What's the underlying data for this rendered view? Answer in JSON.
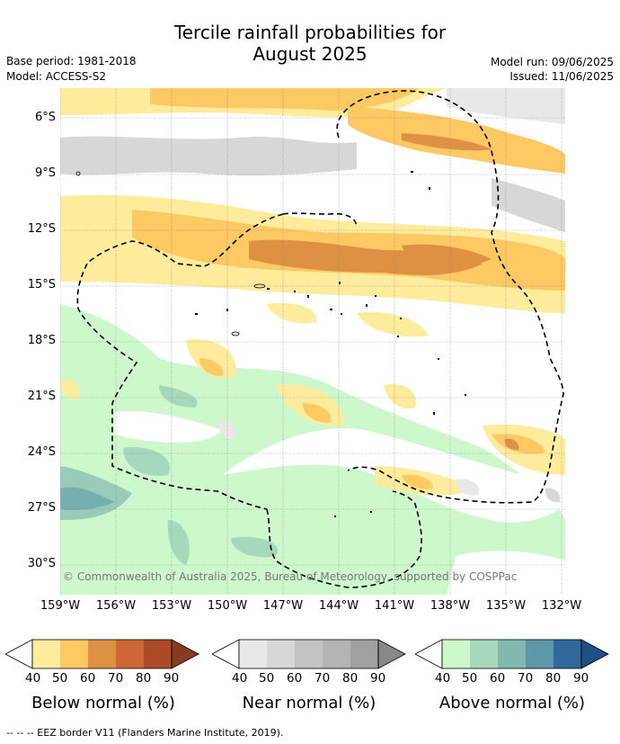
{
  "title": {
    "line1": "Tercile rainfall probabilities for",
    "line2": "August 2025"
  },
  "meta": {
    "base_period": "Base period: 1981-2018",
    "model": "Model: ACCESS-S2",
    "model_run": "Model run: 09/06/2025",
    "issued": "Issued: 11/06/2025"
  },
  "map": {
    "lat_labels": [
      "6°S",
      "9°S",
      "12°S",
      "15°S",
      "18°S",
      "21°S",
      "24°S",
      "27°S",
      "30°S"
    ],
    "lon_labels": [
      "159°W",
      "156°W",
      "153°W",
      "150°W",
      "147°W",
      "144°W",
      "141°W",
      "138°W",
      "135°W",
      "132°W"
    ],
    "copyright": "© Commonwealth of Australia 2025, Bureau of Meteorology, supported by COSPPac"
  },
  "colorbars": [
    {
      "title": "Below normal (%)",
      "ticks": [
        "40",
        "50",
        "60",
        "70",
        "80",
        "90"
      ],
      "colors": [
        "#ffffff",
        "#ffeb9c",
        "#fec863",
        "#df9143",
        "#cf6636",
        "#ad4a2a",
        "#8b3a22"
      ]
    },
    {
      "title": "Near normal (%)",
      "ticks": [
        "40",
        "50",
        "60",
        "70",
        "80",
        "90"
      ],
      "colors": [
        "#ffffff",
        "#e8e8e8",
        "#d7d7d7",
        "#c3c3c3",
        "#b4b4b4",
        "#a0a0a0",
        "#888888"
      ]
    },
    {
      "title": "Above normal (%)",
      "ticks": [
        "40",
        "50",
        "60",
        "70",
        "80",
        "90"
      ],
      "colors": [
        "#ffffff",
        "#ccf8cc",
        "#a6d9bc",
        "#81b9b0",
        "#5d96a8",
        "#31689c",
        "#1f4f86"
      ]
    }
  ],
  "footnote": "--  --  -- EEZ border V11 (Flanders Marine Institute, 2019)."
}
